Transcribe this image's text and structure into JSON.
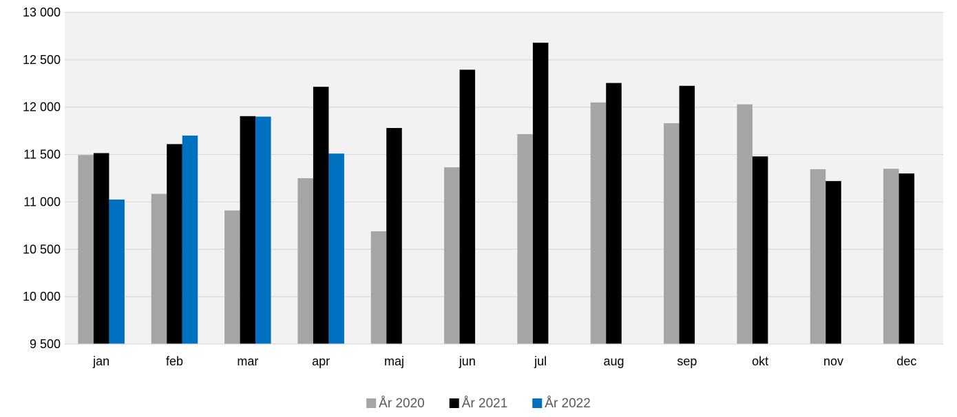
{
  "chart_data": {
    "type": "bar",
    "categories": [
      "jan",
      "feb",
      "mar",
      "apr",
      "maj",
      "jun",
      "jul",
      "aug",
      "sep",
      "okt",
      "nov",
      "dec"
    ],
    "series": [
      {
        "name": "År 2020",
        "color": "#a5a5a5",
        "values": [
          11495,
          11085,
          10910,
          11250,
          10690,
          11365,
          11715,
          12050,
          11830,
          12030,
          11345,
          11350
        ]
      },
      {
        "name": "År 2021",
        "color": "#000000",
        "values": [
          11515,
          11610,
          11905,
          12215,
          11780,
          12395,
          12680,
          12255,
          12225,
          11480,
          11220,
          11300
        ]
      },
      {
        "name": "År 2022",
        "color": "#0070c0",
        "values": [
          11025,
          11700,
          11900,
          11510,
          null,
          null,
          null,
          null,
          null,
          null,
          null,
          null
        ]
      }
    ],
    "ylim": [
      9500,
      13000
    ],
    "y_ticks": [
      9500,
      10000,
      10500,
      11000,
      11500,
      12000,
      12500,
      13000
    ],
    "y_tick_labels": [
      "9 500",
      "10 000",
      "10 500",
      "11 000",
      "11 500",
      "12 000",
      "12 500",
      "13 000"
    ],
    "title": "",
    "xlabel": "",
    "ylabel": "",
    "grid": true,
    "legend_position": "bottom",
    "plot_background": "#f2f2f2",
    "grid_color": "#d9d9d9"
  }
}
